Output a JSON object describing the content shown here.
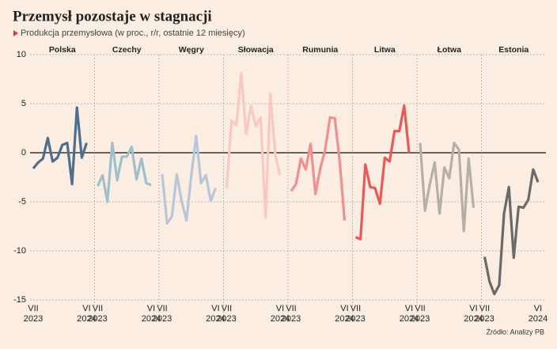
{
  "chart_data": {
    "type": "line",
    "title": "Przemysł pozostaje w stagnacji",
    "subtitle": "Produkcja przemysłowa (w proc., r/r, ostatnie 12 miesięcy)",
    "source": "Źródło: Analizy PB",
    "categories": [
      "VII 2023",
      null,
      null,
      null,
      null,
      null,
      null,
      null,
      null,
      null,
      null,
      "VI 2024"
    ],
    "ylim": [
      -15,
      10
    ],
    "yticks": [
      -15,
      -10,
      -5,
      0,
      5,
      10
    ],
    "grid": true,
    "series": [
      {
        "name": "Polska",
        "color": "#4b6f8c",
        "values": [
          -1.6,
          -1,
          -0.6,
          1.5,
          -0.9,
          -0.5,
          0.8,
          1,
          -3.2,
          4.6,
          -0.5,
          1.0
        ]
      },
      {
        "name": "Czechy",
        "color": "#9fc0cb",
        "values": [
          -3.4,
          -2.3,
          -5,
          1,
          -2.8,
          -0.4,
          -0.4,
          0.6,
          -2.7,
          -0.6,
          -3.1,
          -3.3
        ]
      },
      {
        "name": "Węgry",
        "color": "#b8c6db",
        "values": [
          -2.2,
          -7.2,
          -6.5,
          -2.2,
          -4.9,
          -6.9,
          -2.3,
          1.7,
          -3.1,
          -2.3,
          -4.9,
          -3.6
        ]
      },
      {
        "name": "Słowacja",
        "color": "#f9c8c6",
        "values": [
          -3.6,
          3.3,
          2.8,
          8.1,
          1.9,
          4.8,
          2.7,
          3.6,
          -6.6,
          6,
          -0.2,
          -2.3
        ]
      },
      {
        "name": "Rumunia",
        "color": "#ef8f8f",
        "values": [
          -3.9,
          -3.2,
          -0.6,
          -1.7,
          0.9,
          -4.2,
          -1.6,
          0.3,
          3.6,
          3.5,
          -0.9,
          -6.9
        ]
      },
      {
        "name": "Litwa",
        "color": "#e85a5a",
        "values": [
          -8.6,
          -8.8,
          -1.2,
          -3.5,
          -3.6,
          -5.2,
          -0.5,
          -0.9,
          2.2,
          2.2,
          4.8,
          0
        ]
      },
      {
        "name": "Łotwa",
        "color": "#b5b0a6",
        "values": [
          1,
          -5.9,
          -3.2,
          -1,
          -6.2,
          -1.5,
          -2.6,
          1,
          0.3,
          -8,
          -0.6,
          -5.6
        ]
      },
      {
        "name": "Estonia",
        "color": "#6a6a6a",
        "values": [
          -10.6,
          -13.1,
          -14.4,
          -13.5,
          -6.2,
          -3.5,
          -10.7,
          -5.5,
          -5.6,
          -4.8,
          -1.7,
          -3
        ]
      }
    ]
  }
}
